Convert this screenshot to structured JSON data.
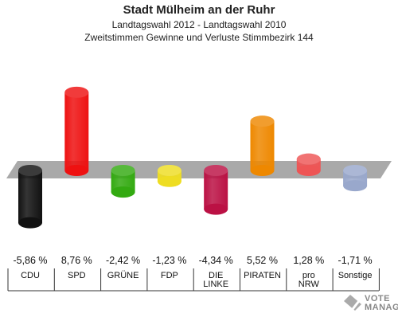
{
  "titles": {
    "line1": "Stadt Mülheim an der Ruhr",
    "line2": "Landtagswahl 2012 - Landtagswahl 2010",
    "line3": "Zweitstimmen Gewinne und Verluste Stimmbezirk 144"
  },
  "chart_data": {
    "type": "bar",
    "title": "Stadt Mülheim an der Ruhr",
    "subtitle": "Landtagswahl 2012 - Landtagswahl 2010 / Zweitstimmen Gewinne und Verluste Stimmbezirk 144",
    "categories": [
      "CDU",
      "SPD",
      "GRÜNE",
      "FDP",
      "DIE LINKE",
      "PIRATEN",
      "pro NRW",
      "Sonstige"
    ],
    "category_lines": [
      [
        "CDU"
      ],
      [
        "SPD"
      ],
      [
        "GRÜNE"
      ],
      [
        "FDP"
      ],
      [
        "DIE",
        "LINKE"
      ],
      [
        "PIRATEN"
      ],
      [
        "pro",
        "NRW"
      ],
      [
        "Sonstige"
      ]
    ],
    "values": [
      -5.86,
      8.76,
      -2.42,
      -1.23,
      -4.34,
      5.52,
      1.28,
      -1.71
    ],
    "value_labels": [
      "-5,86 %",
      "8,76 %",
      "-2,42 %",
      "-1,23 %",
      "-4,34 %",
      "5,52 %",
      "1,28 %",
      "-1,71 %"
    ],
    "colors": [
      "#111111",
      "#ee1111",
      "#33aa11",
      "#eedd22",
      "#bb1144",
      "#ee8800",
      "#ee5555",
      "#99a8cc"
    ],
    "ylim": [
      -8,
      10
    ],
    "grid": false,
    "legend": "none"
  },
  "logo": {
    "line1": "VOTE",
    "line2": "MANAGER"
  }
}
